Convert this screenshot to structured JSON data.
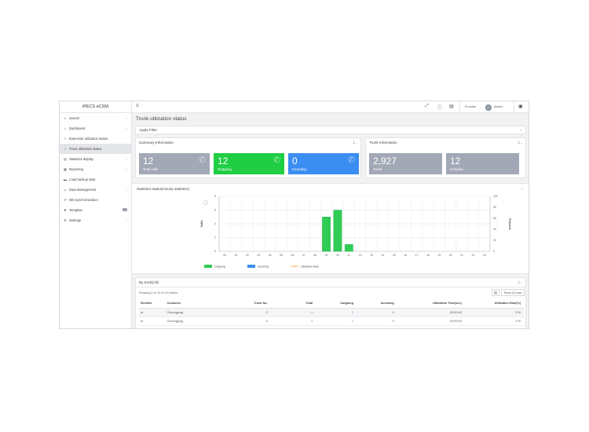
{
  "app": {
    "title": "iPECS eCSM"
  },
  "sidebar": {
    "items": [
      {
        "label": "Search",
        "icon": "search-icon",
        "glyph": "⌕",
        "chevron": "‹"
      },
      {
        "label": "Dashboard",
        "icon": "dashboard-icon",
        "glyph": "⌂",
        "chevron": "‹"
      },
      {
        "label": "Extension utilization status",
        "icon": "chart-line-icon",
        "glyph": "⌇",
        "chevron": ""
      },
      {
        "label": "Trunk utilization status",
        "icon": "chart-line-icon",
        "glyph": "⌇",
        "chevron": ""
      },
      {
        "label": "Statistics display",
        "icon": "chart-icon",
        "glyph": "▤",
        "chevron": "‹"
      },
      {
        "label": "Reporting",
        "icon": "report-icon",
        "glyph": "▦",
        "chevron": "‹"
      },
      {
        "label": "Load backup data",
        "icon": "database-icon",
        "glyph": "▬",
        "chevron": ""
      },
      {
        "label": "Data Management",
        "icon": "folder-icon",
        "glyph": "▭",
        "chevron": "‹"
      },
      {
        "label": "DB Synchronization",
        "icon": "sync-icon",
        "glyph": "⟳",
        "chevron": "‹"
      },
      {
        "label": "Template",
        "icon": "template-icon",
        "glyph": "❖",
        "chevron": ""
      },
      {
        "label": "Settings",
        "icon": "gear-icon",
        "glyph": "⚙",
        "chevron": "‹"
      }
    ],
    "active_index": 3
  },
  "topbar": {
    "menu_glyph": "≡",
    "fullscreen_glyph": "⤢",
    "info_glyph": "ⓘ",
    "document_glyph": "▤",
    "user_name": "Emmiter",
    "admin_label": "Admin",
    "export_glyph": "▣"
  },
  "page": {
    "title": "Trunk utilization status"
  },
  "filter": {
    "label": "Apply Filter",
    "chevron": "⌄"
  },
  "summary": {
    "title": "Summary Information",
    "tools": "⤓  ⌄",
    "cards": [
      {
        "value": "12",
        "label": "Total calls",
        "color": "#a2a8b5"
      },
      {
        "value": "12",
        "label": "Outgoing",
        "color": "#1fce42"
      },
      {
        "value": "0",
        "label": "Incoming",
        "color": "#3b8ef1"
      }
    ],
    "icon_glyph": "✆"
  },
  "trunk": {
    "title": "Trunk Information",
    "tools": "⤓  ⌄",
    "cards": [
      {
        "value": "2,927",
        "label": "Trunk",
        "color": "#a2a8b5"
      },
      {
        "value": "12",
        "label": "Included",
        "color": "#a2a8b5"
      }
    ]
  },
  "stats": {
    "title": "Statistics status(Hourly statistics)",
    "collapse": "⌄",
    "info_badge": "i"
  },
  "chart_data": {
    "type": "bar",
    "categories": [
      "00",
      "01",
      "02",
      "03",
      "04",
      "05",
      "06",
      "07",
      "08",
      "09",
      "10",
      "11",
      "12",
      "13",
      "14",
      "15",
      "16",
      "17",
      "18",
      "19",
      "20",
      "21",
      "22",
      "23"
    ],
    "series": [
      {
        "name": "Outgoing",
        "values": [
          0,
          0,
          0,
          0,
          0,
          0,
          0,
          0,
          0,
          5,
          6,
          1,
          0,
          0,
          0,
          0,
          0,
          0,
          0,
          0,
          0,
          0,
          0,
          0
        ],
        "color": "#2ecc54"
      },
      {
        "name": "Incoming",
        "values": [
          0,
          0,
          0,
          0,
          0,
          0,
          0,
          0,
          0,
          0,
          0,
          0,
          0,
          0,
          0,
          0,
          0,
          0,
          0,
          0,
          0,
          0,
          0,
          0
        ],
        "color": "#3d8ef0"
      },
      {
        "name": "Utilization Rate",
        "values": [
          0,
          0,
          0,
          0,
          0,
          0,
          0,
          0,
          0,
          0,
          0,
          0,
          0,
          0,
          0,
          0,
          0,
          0,
          0,
          0,
          0,
          0,
          0,
          0
        ],
        "color": "#f5a33a"
      }
    ],
    "ylabel": "Calls",
    "y2label": "Percent",
    "ylim": [
      0,
      8
    ],
    "yticks": [
      "0",
      "2",
      "4",
      "6",
      "8"
    ],
    "y2lim": [
      0,
      100
    ],
    "y2ticks": [
      "0",
      "20",
      "40",
      "60",
      "80",
      "100"
    ],
    "grid": true,
    "legend": "bottom-left"
  },
  "trunk_table": {
    "title": "By trunk(All)",
    "tools": "⤓  ⌄",
    "entries_text": "Showing 1 to 10 of 12 entries",
    "show_rows": "Show 10 rows",
    "export_glyph": "▤",
    "columns": [
      "Reseller",
      "Customer",
      "Trunk No.",
      "Total",
      "Outgoing",
      "Incoming",
      "Utilization Time(sec)",
      "Utilization Rate(%)"
    ],
    "rows": [
      [
        "re",
        "Cheongjong",
        "2",
        "1",
        "1",
        "0",
        "00:00:00",
        "0 %"
      ],
      [
        "re",
        "Cheongjong",
        "3",
        "1",
        "1",
        "0",
        "00:00:00",
        "0 %"
      ]
    ]
  }
}
